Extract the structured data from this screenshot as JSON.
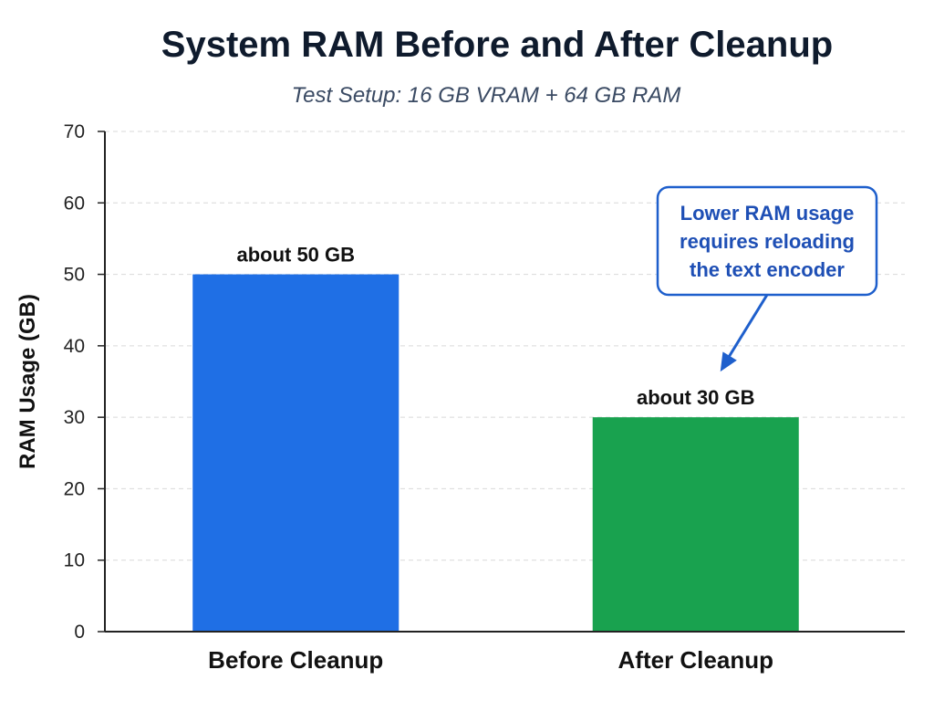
{
  "chart_data": {
    "type": "bar",
    "title": "System RAM Before and After Cleanup",
    "subtitle": "Test Setup: 16 GB VRAM + 64 GB RAM",
    "xlabel": "",
    "ylabel": "RAM Usage (GB)",
    "ylim": [
      0,
      70
    ],
    "yticks": [
      0,
      10,
      20,
      30,
      40,
      50,
      60,
      70
    ],
    "grid": true,
    "categories": [
      "Before Cleanup",
      "After Cleanup"
    ],
    "values": [
      50,
      30
    ],
    "data_labels": [
      "about 50 GB",
      "about 30 GB"
    ],
    "colors": [
      "#1f6fe5",
      "#19a24f"
    ],
    "annotation": {
      "lines": [
        "Lower RAM usage",
        "requires reloading",
        "the text encoder"
      ],
      "target_category": "After Cleanup"
    }
  }
}
